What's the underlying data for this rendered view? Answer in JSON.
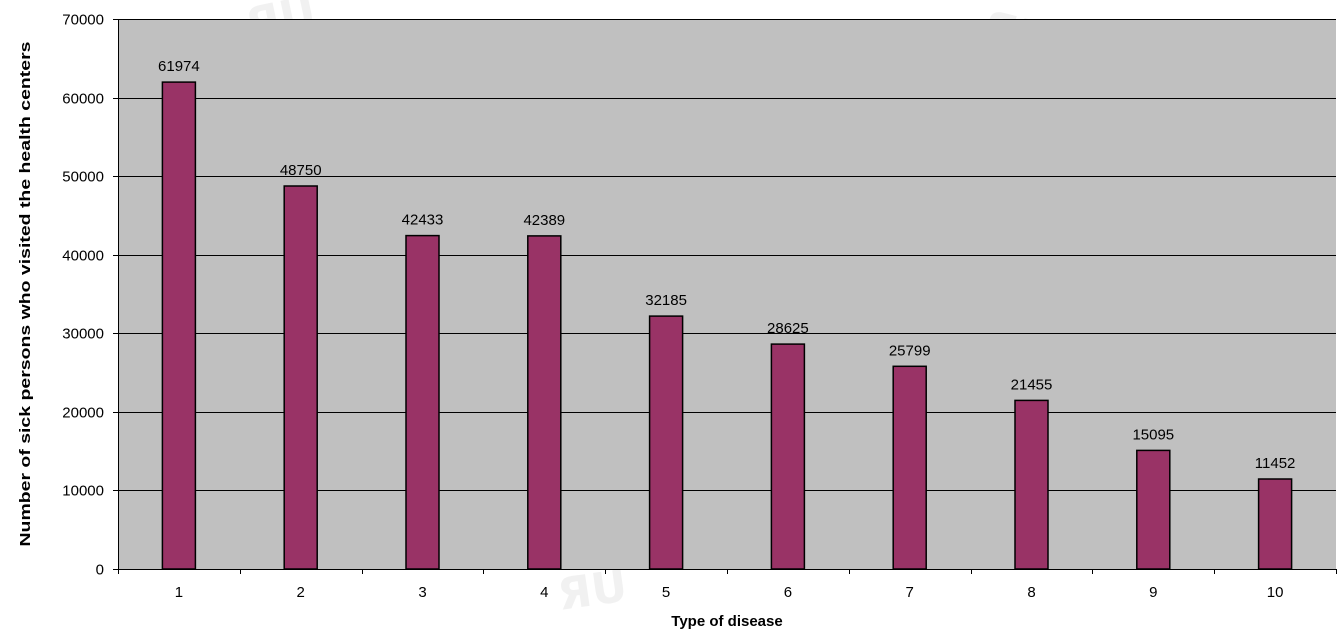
{
  "chart_data": {
    "type": "bar",
    "categories": [
      "1",
      "2",
      "3",
      "4",
      "5",
      "6",
      "7",
      "8",
      "9",
      "10"
    ],
    "values": [
      61974,
      48750,
      42433,
      42389,
      32185,
      28625,
      25799,
      21455,
      15095,
      11452
    ],
    "data_labels": [
      "61974",
      "48750",
      "42433",
      "42389",
      "32185",
      "28625",
      "25799",
      "21455",
      "15095",
      "11452"
    ],
    "y_ticks": [
      "0",
      "10000",
      "20000",
      "30000",
      "40000",
      "50000",
      "60000",
      "70000"
    ],
    "xlabel": "Type of disease",
    "ylabel": "Number of sick persons who visited the health centers",
    "ylim": [
      0,
      70000
    ],
    "ytick_step": 10000,
    "grid": true,
    "legend": "none",
    "colors": {
      "bar_fill": "#993366",
      "bar_stroke": "#000000",
      "plot_background": "#c0c0c0",
      "gridline": "#000000",
      "axis": "#000000"
    }
  }
}
